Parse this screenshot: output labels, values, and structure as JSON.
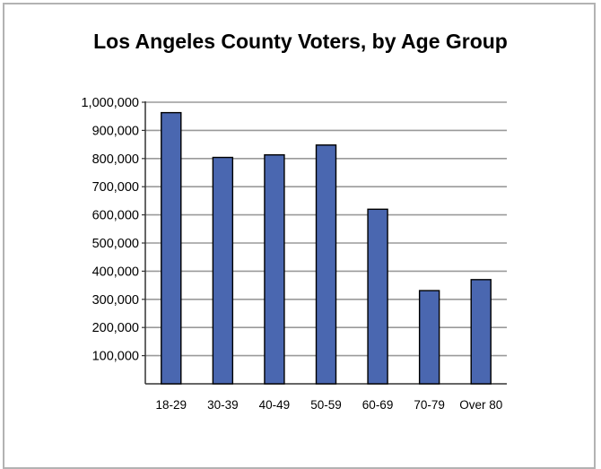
{
  "chart_data": {
    "type": "bar",
    "title": "Los Angeles County Voters, by Age Group",
    "xlabel": "",
    "ylabel": "",
    "categories": [
      "18-29",
      "30-39",
      "40-49",
      "50-59",
      "60-69",
      "70-79",
      "Over 80"
    ],
    "values": [
      963000,
      804000,
      813000,
      848000,
      620000,
      331000,
      370000
    ],
    "yticks": [
      "100,000",
      "200,000",
      "300,000",
      "400,000",
      "500,000",
      "600,000",
      "700,000",
      "800,000",
      "900,000",
      "1,000,000"
    ],
    "ylim": [
      0,
      1000000
    ],
    "grid": true,
    "legend": "none",
    "colors": {
      "bar_fill": "#4a67b0",
      "bar_stroke": "#000000",
      "grid": "#9a9a9a",
      "axis": "#333333",
      "frame": "#b3b3b3"
    }
  }
}
